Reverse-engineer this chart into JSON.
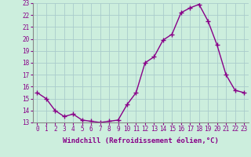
{
  "x": [
    0,
    1,
    2,
    3,
    4,
    5,
    6,
    7,
    8,
    9,
    10,
    11,
    12,
    13,
    14,
    15,
    16,
    17,
    18,
    19,
    20,
    21,
    22,
    23
  ],
  "y": [
    15.5,
    15.0,
    14.0,
    13.5,
    13.7,
    13.2,
    13.1,
    13.0,
    13.1,
    13.2,
    14.5,
    15.5,
    18.0,
    18.5,
    19.9,
    20.4,
    22.2,
    22.6,
    22.9,
    21.5,
    19.5,
    17.0,
    15.7,
    15.5
  ],
  "line_color": "#880088",
  "marker": "+",
  "marker_size": 4,
  "linewidth": 1.0,
  "xlabel": "Windchill (Refroidissement éolien,°C)",
  "xlabel_fontsize": 6.5,
  "ylim": [
    13,
    23
  ],
  "yticks": [
    13,
    14,
    15,
    16,
    17,
    18,
    19,
    20,
    21,
    22,
    23
  ],
  "xticks": [
    0,
    1,
    2,
    3,
    4,
    5,
    6,
    7,
    8,
    9,
    10,
    11,
    12,
    13,
    14,
    15,
    16,
    17,
    18,
    19,
    20,
    21,
    22,
    23
  ],
  "background_color": "#cceedd",
  "grid_color": "#aacccc",
  "tick_label_fontsize": 5.5,
  "tick_color": "#880088",
  "label_color": "#880088",
  "spine_color": "#888888"
}
